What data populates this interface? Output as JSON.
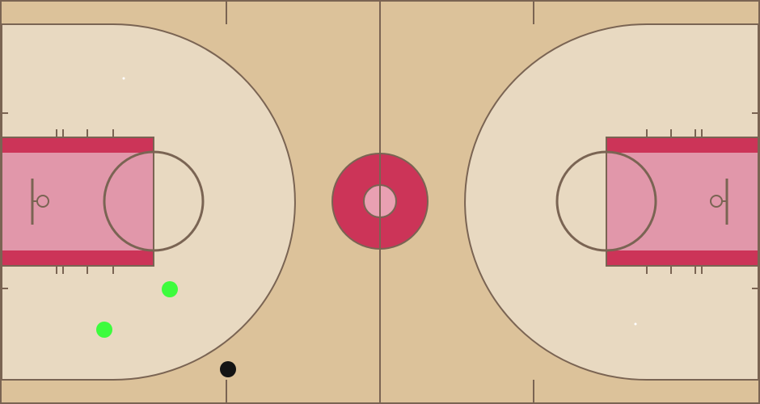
{
  "court": {
    "colors": {
      "wood": "#dcc29a",
      "three_point_area": "#e8d9c1",
      "paint_fill": "#e197aa",
      "paint_stripe": "#cc3458",
      "center_ring": "#cc3458",
      "center_dot": "#e9a0b2",
      "line": "#7a6453"
    },
    "players": [
      {
        "team": "green",
        "color": "#3dfc3d"
      },
      {
        "team": "green",
        "color": "#3dfc3d"
      },
      {
        "team": "black",
        "color": "#141414"
      }
    ]
  }
}
